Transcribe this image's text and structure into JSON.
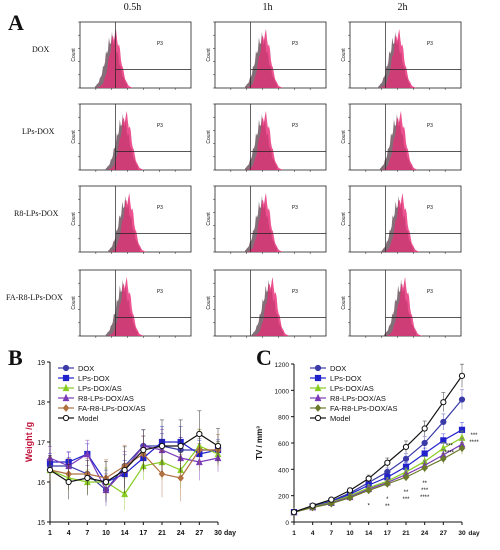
{
  "panel_labels": {
    "a": "A",
    "b": "B",
    "c": "C"
  },
  "chart_data": [
    {
      "panel": "A",
      "type": "histogram-grid",
      "columns": [
        "0.5h",
        "1h",
        "2h"
      ],
      "rows": [
        "DOX",
        "LPs-DOX",
        "R8-LPs-DOX",
        "FA-R8-LPs-DOX"
      ],
      "gate_label": "P3",
      "ylabel": "Count",
      "peak_color": "#e8307a",
      "peak_position": [
        [
          0.42,
          0.6,
          0.58
        ],
        [
          0.55,
          0.6,
          0.6
        ],
        [
          0.58,
          0.6,
          0.62
        ],
        [
          0.55,
          0.68,
          0.65
        ]
      ]
    },
    {
      "panel": "B",
      "type": "line",
      "ylabel": "Weight /g",
      "xlabel": "day",
      "x": [
        1,
        4,
        7,
        10,
        14,
        17,
        21,
        24,
        27,
        30
      ],
      "ylim": [
        15,
        19
      ],
      "yticks": [
        15,
        16,
        17,
        18,
        19
      ],
      "series": [
        {
          "name": "DOX",
          "color": "#3a3aa8",
          "marker": "circle",
          "values": [
            16.4,
            16.4,
            16.2,
            15.8,
            16.4,
            16.9,
            16.9,
            16.8,
            16.8,
            16.8
          ]
        },
        {
          "name": "LPs-DOX",
          "color": "#2222cc",
          "marker": "square",
          "values": [
            16.5,
            16.5,
            16.7,
            16.0,
            16.2,
            16.6,
            17.0,
            17.0,
            16.7,
            16.8
          ]
        },
        {
          "name": "LPs-DOX/AS",
          "color": "#88cc22",
          "marker": "triangle",
          "values": [
            16.3,
            16.1,
            16.0,
            16.0,
            15.7,
            16.4,
            16.5,
            16.3,
            16.9,
            16.7
          ]
        },
        {
          "name": "R8-LPs-DOX/AS",
          "color": "#7a3ab8",
          "marker": "triangle",
          "values": [
            16.6,
            16.4,
            16.7,
            15.8,
            16.3,
            16.9,
            16.8,
            16.6,
            16.5,
            16.6
          ]
        },
        {
          "name": "FA-R8-LPs-DOX/AS",
          "color": "#b07040",
          "marker": "diamond",
          "values": [
            16.3,
            16.2,
            16.2,
            16.1,
            16.4,
            16.7,
            16.2,
            16.1,
            16.8,
            16.8
          ]
        },
        {
          "name": "Model",
          "color": "#111111",
          "marker": "circle",
          "values": [
            16.3,
            16.0,
            16.1,
            16.0,
            16.3,
            16.8,
            16.9,
            16.9,
            17.2,
            16.9
          ]
        }
      ]
    },
    {
      "panel": "C",
      "type": "line",
      "ylabel": "TV / mm³",
      "xlabel": "day",
      "x": [
        1,
        4,
        7,
        10,
        14,
        17,
        21,
        24,
        27,
        30
      ],
      "ylim": [
        0,
        1200
      ],
      "yticks": [
        0,
        200,
        400,
        600,
        800,
        1000,
        1200
      ],
      "series": [
        {
          "name": "DOX",
          "color": "#3a3aa8",
          "marker": "circle",
          "values": [
            75,
            120,
            160,
            220,
            300,
            380,
            480,
            600,
            760,
            930
          ]
        },
        {
          "name": "LPs-DOX",
          "color": "#2222cc",
          "marker": "square",
          "values": [
            75,
            118,
            155,
            210,
            280,
            340,
            420,
            520,
            620,
            700
          ]
        },
        {
          "name": "LPs-DOX/AS",
          "color": "#88cc22",
          "marker": "triangle",
          "values": [
            75,
            115,
            150,
            200,
            260,
            310,
            380,
            460,
            560,
            640
          ]
        },
        {
          "name": "R8-LPs-DOX/AS",
          "color": "#7a3ab8",
          "marker": "triangle",
          "values": [
            75,
            112,
            145,
            190,
            250,
            300,
            360,
            430,
            510,
            590
          ]
        },
        {
          "name": "FA-R8-LPs-DOX/AS",
          "color": "#6b7a2a",
          "marker": "diamond",
          "values": [
            75,
            110,
            140,
            185,
            240,
            290,
            340,
            410,
            480,
            560
          ]
        },
        {
          "name": "Model",
          "color": "#111111",
          "marker": "circle",
          "values": [
            75,
            125,
            170,
            240,
            330,
            450,
            570,
            710,
            910,
            1110
          ]
        }
      ],
      "annotations": [
        {
          "x": 14,
          "text": "*"
        },
        {
          "x": 17,
          "text": "*"
        },
        {
          "x": 17,
          "text": "**"
        },
        {
          "x": 21,
          "text": "**"
        },
        {
          "x": 21,
          "text": "***"
        },
        {
          "x": 24,
          "text": "**"
        },
        {
          "x": 24,
          "text": "***"
        },
        {
          "x": 24,
          "text": "****"
        },
        {
          "x": 27,
          "text": "***"
        },
        {
          "x": 27,
          "text": "****"
        },
        {
          "x": 30,
          "text": "***"
        },
        {
          "x": 30,
          "text": "****"
        }
      ]
    }
  ]
}
